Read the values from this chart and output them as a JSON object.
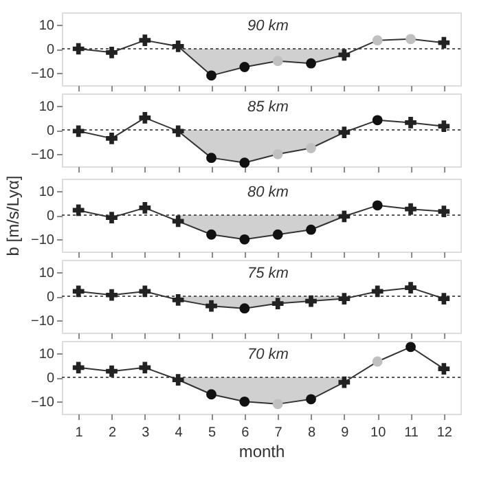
{
  "chart_data": [
    {
      "type": "line",
      "xlim": [
        0.5,
        12.5
      ],
      "xticks": [
        1,
        2,
        3,
        4,
        5,
        6,
        7,
        8,
        9,
        10,
        11,
        12
      ],
      "ylim": [
        -15,
        15
      ],
      "yticks": [
        -10,
        0,
        10
      ],
      "tick_labels": "y",
      "grid": false,
      "annotations": [
        "90 km"
      ],
      "ref_lines": [
        {
          "axis": "y",
          "value": 0,
          "line_style": "dotted",
          "color": "#555555"
        }
      ],
      "series": [
        {
          "type": "area",
          "x": [
            4,
            5,
            6,
            7,
            8,
            9
          ],
          "values": [
            1,
            -11,
            -7.5,
            -5,
            -6,
            -2.5
          ],
          "color": "#d0d0d0"
        },
        {
          "x": [
            1,
            2,
            3,
            4,
            5,
            6,
            7,
            8,
            9,
            10,
            11,
            12
          ],
          "values": [
            0,
            -1.5,
            3.5,
            1,
            -11,
            -7.5,
            -5,
            -6,
            -2.5,
            3.5,
            4,
            2.5
          ],
          "color": "#333333",
          "marker": "none"
        },
        {
          "type": "scatter",
          "x": [
            1,
            2,
            3,
            4,
            9,
            12
          ],
          "values": [
            0,
            -1.5,
            3.5,
            1,
            -2.5,
            2.5
          ],
          "color": "#222222",
          "marker": "cross"
        },
        {
          "type": "scatter",
          "x": [
            5,
            6,
            8
          ],
          "values": [
            -11,
            -7.5,
            -6
          ],
          "color": "#111111",
          "marker": "circle"
        },
        {
          "type": "scatter",
          "x": [
            7,
            10,
            11
          ],
          "values": [
            -5,
            3.5,
            4
          ],
          "color": "#c0c0c0",
          "marker": "circle"
        }
      ]
    },
    {
      "type": "line",
      "xlim": [
        0.5,
        12.5
      ],
      "xticks": [
        1,
        2,
        3,
        4,
        5,
        6,
        7,
        8,
        9,
        10,
        11,
        12
      ],
      "ylim": [
        -15,
        15
      ],
      "yticks": [
        -10,
        0,
        10
      ],
      "tick_labels": "y",
      "grid": false,
      "annotations": [
        "85 km"
      ],
      "ref_lines": [
        {
          "axis": "y",
          "value": 0,
          "line_style": "dotted",
          "color": "#555555"
        }
      ],
      "series": [
        {
          "type": "area",
          "x": [
            4,
            5,
            6,
            7,
            8,
            9
          ],
          "values": [
            -0.5,
            -11.5,
            -13.5,
            -10,
            -7.5,
            -1
          ],
          "color": "#d0d0d0"
        },
        {
          "x": [
            1,
            2,
            3,
            4,
            5,
            6,
            7,
            8,
            9,
            10,
            11,
            12
          ],
          "values": [
            -0.5,
            -3.5,
            5,
            -0.5,
            -11.5,
            -13.5,
            -10,
            -7.5,
            -1,
            4,
            3,
            1.5
          ],
          "color": "#333333",
          "marker": "none"
        },
        {
          "type": "scatter",
          "x": [
            1,
            2,
            3,
            4,
            9,
            11,
            12
          ],
          "values": [
            -0.5,
            -3.5,
            5,
            -0.5,
            -1,
            3,
            1.5
          ],
          "color": "#222222",
          "marker": "cross"
        },
        {
          "type": "scatter",
          "x": [
            5,
            6,
            10
          ],
          "values": [
            -11.5,
            -13.5,
            4
          ],
          "color": "#111111",
          "marker": "circle"
        },
        {
          "type": "scatter",
          "x": [
            7,
            8
          ],
          "values": [
            -10,
            -7.5
          ],
          "color": "#c0c0c0",
          "marker": "circle"
        }
      ]
    },
    {
      "type": "line",
      "xlim": [
        0.5,
        12.5
      ],
      "xticks": [
        1,
        2,
        3,
        4,
        5,
        6,
        7,
        8,
        9,
        10,
        11,
        12
      ],
      "ylim": [
        -15,
        15
      ],
      "yticks": [
        -10,
        0,
        10
      ],
      "tick_labels": "y",
      "grid": false,
      "ylabel": "b [m/s/Lyα]",
      "annotations": [
        "80 km"
      ],
      "ref_lines": [
        {
          "axis": "y",
          "value": 0,
          "line_style": "dotted",
          "color": "#555555"
        }
      ],
      "series": [
        {
          "type": "area",
          "x": [
            4,
            5,
            6,
            7,
            8,
            9
          ],
          "values": [
            -2.5,
            -8,
            -10,
            -8,
            -6,
            -0.5
          ],
          "color": "#d0d0d0"
        },
        {
          "x": [
            1,
            2,
            3,
            4,
            5,
            6,
            7,
            8,
            9,
            10,
            11,
            12
          ],
          "values": [
            2,
            -1,
            3,
            -2.5,
            -8,
            -10,
            -8,
            -6,
            -0.5,
            4,
            2.5,
            1.5
          ],
          "color": "#333333",
          "marker": "none"
        },
        {
          "type": "scatter",
          "x": [
            1,
            2,
            3,
            4,
            9,
            11,
            12
          ],
          "values": [
            2,
            -1,
            3,
            -2.5,
            -0.5,
            2.5,
            1.5
          ],
          "color": "#222222",
          "marker": "cross"
        },
        {
          "type": "scatter",
          "x": [
            5,
            6,
            7,
            8,
            10
          ],
          "values": [
            -8,
            -10,
            -8,
            -6,
            4
          ],
          "color": "#111111",
          "marker": "circle"
        }
      ]
    },
    {
      "type": "line",
      "xlim": [
        0.5,
        12.5
      ],
      "xticks": [
        1,
        2,
        3,
        4,
        5,
        6,
        7,
        8,
        9,
        10,
        11,
        12
      ],
      "ylim": [
        -15,
        15
      ],
      "yticks": [
        -10,
        0,
        10
      ],
      "tick_labels": "y",
      "grid": false,
      "annotations": [
        "75 km"
      ],
      "ref_lines": [
        {
          "axis": "y",
          "value": 0,
          "line_style": "dotted",
          "color": "#555555"
        }
      ],
      "series": [
        {
          "type": "area",
          "x": [
            4,
            5,
            6,
            7,
            8,
            9
          ],
          "values": [
            -1.5,
            -4,
            -5,
            -3,
            -2,
            -1
          ],
          "color": "#d0d0d0"
        },
        {
          "x": [
            1,
            2,
            3,
            4,
            5,
            6,
            7,
            8,
            9,
            10,
            11,
            12
          ],
          "values": [
            2,
            0.5,
            2,
            -1.5,
            -4,
            -5,
            -3,
            -2,
            -1,
            2,
            3.5,
            -1
          ],
          "color": "#333333",
          "marker": "none"
        },
        {
          "type": "scatter",
          "x": [
            1,
            2,
            3,
            4,
            5,
            7,
            8,
            9,
            10,
            11,
            12
          ],
          "values": [
            2,
            0.5,
            2,
            -1.5,
            -4,
            -3,
            -2,
            -1,
            2,
            3.5,
            -1
          ],
          "color": "#222222",
          "marker": "cross"
        },
        {
          "type": "scatter",
          "x": [
            6
          ],
          "values": [
            -5
          ],
          "color": "#111111",
          "marker": "circle"
        }
      ]
    },
    {
      "type": "line",
      "xlim": [
        0.5,
        12.5
      ],
      "xticks": [
        1,
        2,
        3,
        4,
        5,
        6,
        7,
        8,
        9,
        10,
        11,
        12
      ],
      "ylim": [
        -15,
        15
      ],
      "yticks": [
        -10,
        0,
        10
      ],
      "grid": false,
      "xlabel": "month",
      "annotations": [
        "70 km"
      ],
      "ref_lines": [
        {
          "axis": "y",
          "value": 0,
          "line_style": "dotted",
          "color": "#555555"
        }
      ],
      "series": [
        {
          "type": "area",
          "x": [
            4,
            5,
            6,
            7,
            8,
            9
          ],
          "values": [
            -1,
            -7,
            -10,
            -11,
            -9,
            -2
          ],
          "color": "#d0d0d0"
        },
        {
          "x": [
            1,
            2,
            3,
            4,
            5,
            6,
            7,
            8,
            9,
            10,
            11,
            12
          ],
          "values": [
            4,
            2.5,
            4,
            -1,
            -7,
            -10,
            -11,
            -9,
            -2,
            6.5,
            12.5,
            3.5
          ],
          "color": "#333333",
          "marker": "none"
        },
        {
          "type": "scatter",
          "x": [
            1,
            2,
            3,
            4,
            9,
            12
          ],
          "values": [
            4,
            2.5,
            4,
            -1,
            -2,
            3.5
          ],
          "color": "#222222",
          "marker": "cross"
        },
        {
          "type": "scatter",
          "x": [
            5,
            6,
            8,
            11
          ],
          "values": [
            -7,
            -10,
            -9,
            12.5
          ],
          "color": "#111111",
          "marker": "circle"
        },
        {
          "type": "scatter",
          "x": [
            7,
            10
          ],
          "values": [
            -11,
            6.5
          ],
          "color": "#c0c0c0",
          "marker": "circle"
        }
      ]
    }
  ]
}
